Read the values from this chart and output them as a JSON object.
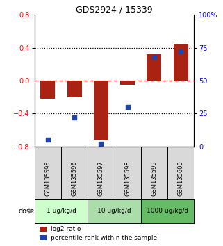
{
  "title": "GDS2924 / 15339",
  "samples": [
    "GSM135595",
    "GSM135596",
    "GSM135597",
    "GSM135598",
    "GSM135599",
    "GSM135600"
  ],
  "log2_ratio": [
    -0.22,
    -0.2,
    -0.72,
    -0.05,
    0.32,
    0.45
  ],
  "percentile_rank": [
    5,
    22,
    2,
    30,
    68,
    72
  ],
  "bar_color": "#AA2211",
  "dot_color": "#2244AA",
  "ylim_left": [
    -0.8,
    0.8
  ],
  "ylim_right": [
    0,
    100
  ],
  "yticks_left": [
    -0.8,
    -0.4,
    0.0,
    0.4,
    0.8
  ],
  "yticks_right": [
    0,
    25,
    50,
    75,
    100
  ],
  "ytick_labels_right": [
    "0",
    "25",
    "50",
    "75",
    "100%"
  ],
  "dose_groups": [
    {
      "label": "1 ug/kg/d",
      "samples": [
        "GSM135595",
        "GSM135596"
      ],
      "color": "#ccffcc"
    },
    {
      "label": "10 ug/kg/d",
      "samples": [
        "GSM135597",
        "GSM135598"
      ],
      "color": "#aaddaa"
    },
    {
      "label": "1000 ug/kg/d",
      "samples": [
        "GSM135599",
        "GSM135600"
      ],
      "color": "#66bb66"
    }
  ],
  "dose_label": "dose",
  "legend_bar_label": "log2 ratio",
  "legend_dot_label": "percentile rank within the sample",
  "bar_width": 0.55
}
